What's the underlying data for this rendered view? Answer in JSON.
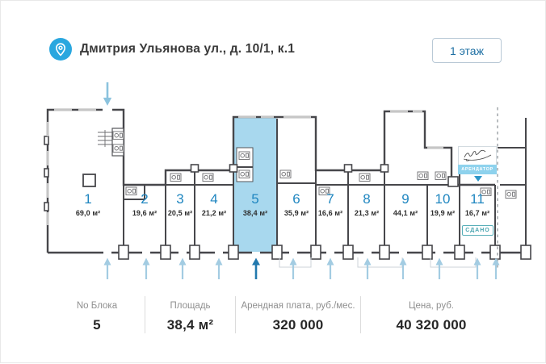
{
  "header": {
    "address": "Дмитрия Ульянова ул., д. 10/1, к.1",
    "floor_button": "1 этаж"
  },
  "plan": {
    "units": [
      {
        "number": "1",
        "area": "69,0 м²"
      },
      {
        "number": "2",
        "area": "19,6 м²"
      },
      {
        "number": "3",
        "area": "20,5 м²"
      },
      {
        "number": "4",
        "area": "21,2 м²"
      },
      {
        "number": "5",
        "area": "38,4 м²",
        "selected": true
      },
      {
        "number": "6",
        "area": "35,9 м²"
      },
      {
        "number": "7",
        "area": "16,6 м²"
      },
      {
        "number": "8",
        "area": "21,3 м²"
      },
      {
        "number": "9",
        "area": "44,1 м²"
      },
      {
        "number": "10",
        "area": "19,9 м²"
      },
      {
        "number": "11",
        "area": "16,7 м²"
      }
    ],
    "tenant_badge": {
      "label": "АРЕНДАТОР"
    },
    "leased_badge": "СДАНО"
  },
  "info_bar": {
    "columns": [
      {
        "label": "No Блока",
        "value": "5"
      },
      {
        "label": "Площадь",
        "value": "38,4 м²"
      },
      {
        "label": "Арендная плата, руб./мес.",
        "value": "320 000"
      },
      {
        "label": "Цена, руб.",
        "value": "40 320 000"
      }
    ]
  },
  "icons": {
    "location_pin": "map-pin",
    "entrance_arrows": "arrow",
    "wc": "washbasin"
  },
  "colors": {
    "accent_blue": "#1f86c0",
    "selected_unit_fill": "#a8d8ee",
    "wall": "#47474b",
    "arrow_light": "#a3cce2",
    "arrow_dark": "#2279ae",
    "tenant_badge_bg": "#8ed2ed",
    "leased_badge": "#58aeb8"
  }
}
